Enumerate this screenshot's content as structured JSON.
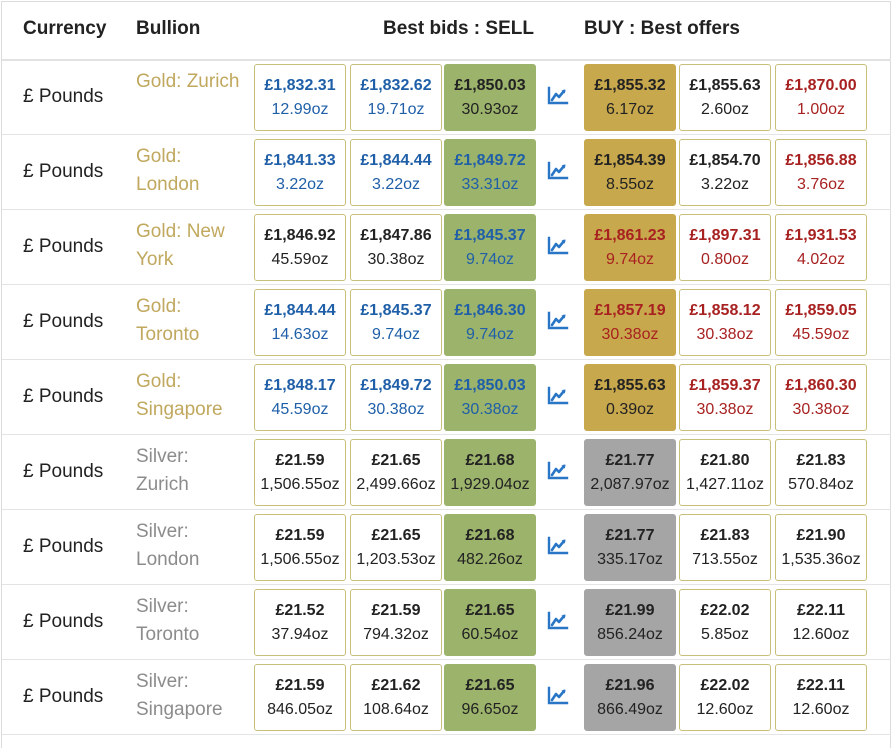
{
  "header": {
    "currency": "Currency",
    "bullion": "Bullion",
    "sell": "Best bids : SELL",
    "buy": "BUY : Best offers"
  },
  "colors": {
    "sell_highlight": "#9cb36c",
    "buy_gold_highlight": "#c8a84c",
    "buy_silver_highlight": "#a5a5a5",
    "blue_text": "#1f5fa8",
    "red_text": "#a82121",
    "gold_label": "#c0a85e",
    "silver_label": "#8c8c8c",
    "chart_icon": "#2a76c6"
  },
  "rows": [
    {
      "currency": "£ Pounds",
      "metal": "gold",
      "bullion": "Gold: Zurich",
      "sell": [
        {
          "price": "£1,832.31",
          "oz": "12.99oz",
          "color": "blue"
        },
        {
          "price": "£1,832.62",
          "oz": "19.71oz",
          "color": "blue"
        },
        {
          "price": "£1,850.03",
          "oz": "30.93oz",
          "color": "dark"
        }
      ],
      "buy": [
        {
          "price": "£1,855.32",
          "oz": "6.17oz",
          "color": "dark"
        },
        {
          "price": "£1,855.63",
          "oz": "2.60oz",
          "color": "dark"
        },
        {
          "price": "£1,870.00",
          "oz": "1.00oz",
          "color": "red"
        }
      ]
    },
    {
      "currency": "£ Pounds",
      "metal": "gold",
      "bullion": "Gold: London",
      "sell": [
        {
          "price": "£1,841.33",
          "oz": "3.22oz",
          "color": "blue"
        },
        {
          "price": "£1,844.44",
          "oz": "3.22oz",
          "color": "blue"
        },
        {
          "price": "£1,849.72",
          "oz": "33.31oz",
          "color": "blue"
        }
      ],
      "buy": [
        {
          "price": "£1,854.39",
          "oz": "8.55oz",
          "color": "dark"
        },
        {
          "price": "£1,854.70",
          "oz": "3.22oz",
          "color": "dark"
        },
        {
          "price": "£1,856.88",
          "oz": "3.76oz",
          "color": "red"
        }
      ]
    },
    {
      "currency": "£ Pounds",
      "metal": "gold",
      "bullion": "Gold: New York",
      "sell": [
        {
          "price": "£1,846.92",
          "oz": "45.59oz",
          "color": "dark"
        },
        {
          "price": "£1,847.86",
          "oz": "30.38oz",
          "color": "dark"
        },
        {
          "price": "£1,845.37",
          "oz": "9.74oz",
          "color": "blue"
        }
      ],
      "buy": [
        {
          "price": "£1,861.23",
          "oz": "9.74oz",
          "color": "red"
        },
        {
          "price": "£1,897.31",
          "oz": "0.80oz",
          "color": "red"
        },
        {
          "price": "£1,931.53",
          "oz": "4.02oz",
          "color": "red"
        }
      ]
    },
    {
      "currency": "£ Pounds",
      "metal": "gold",
      "bullion": "Gold: Toronto",
      "sell": [
        {
          "price": "£1,844.44",
          "oz": "14.63oz",
          "color": "blue"
        },
        {
          "price": "£1,845.37",
          "oz": "9.74oz",
          "color": "blue"
        },
        {
          "price": "£1,846.30",
          "oz": "9.74oz",
          "color": "blue"
        }
      ],
      "buy": [
        {
          "price": "£1,857.19",
          "oz": "30.38oz",
          "color": "red"
        },
        {
          "price": "£1,858.12",
          "oz": "30.38oz",
          "color": "red"
        },
        {
          "price": "£1,859.05",
          "oz": "45.59oz",
          "color": "red"
        }
      ]
    },
    {
      "currency": "£ Pounds",
      "metal": "gold",
      "bullion": "Gold: Singapore",
      "sell": [
        {
          "price": "£1,848.17",
          "oz": "45.59oz",
          "color": "blue"
        },
        {
          "price": "£1,849.72",
          "oz": "30.38oz",
          "color": "blue"
        },
        {
          "price": "£1,850.03",
          "oz": "30.38oz",
          "color": "blue"
        }
      ],
      "buy": [
        {
          "price": "£1,855.63",
          "oz": "0.39oz",
          "color": "dark"
        },
        {
          "price": "£1,859.37",
          "oz": "30.38oz",
          "color": "red"
        },
        {
          "price": "£1,860.30",
          "oz": "30.38oz",
          "color": "red"
        }
      ]
    },
    {
      "currency": "£ Pounds",
      "metal": "silver",
      "bullion": "Silver: Zurich",
      "sell": [
        {
          "price": "£21.59",
          "oz": "1,506.55oz",
          "color": "dark"
        },
        {
          "price": "£21.65",
          "oz": "2,499.66oz",
          "color": "dark"
        },
        {
          "price": "£21.68",
          "oz": "1,929.04oz",
          "color": "dark"
        }
      ],
      "buy": [
        {
          "price": "£21.77",
          "oz": "2,087.97oz",
          "color": "dark"
        },
        {
          "price": "£21.80",
          "oz": "1,427.11oz",
          "color": "dark"
        },
        {
          "price": "£21.83",
          "oz": "570.84oz",
          "color": "dark"
        }
      ]
    },
    {
      "currency": "£ Pounds",
      "metal": "silver",
      "bullion": "Silver: London",
      "sell": [
        {
          "price": "£21.59",
          "oz": "1,506.55oz",
          "color": "dark"
        },
        {
          "price": "£21.65",
          "oz": "1,203.53oz",
          "color": "dark"
        },
        {
          "price": "£21.68",
          "oz": "482.26oz",
          "color": "dark"
        }
      ],
      "buy": [
        {
          "price": "£21.77",
          "oz": "335.17oz",
          "color": "dark"
        },
        {
          "price": "£21.83",
          "oz": "713.55oz",
          "color": "dark"
        },
        {
          "price": "£21.90",
          "oz": "1,535.36oz",
          "color": "dark"
        }
      ]
    },
    {
      "currency": "£ Pounds",
      "metal": "silver",
      "bullion": "Silver: Toronto",
      "sell": [
        {
          "price": "£21.52",
          "oz": "37.94oz",
          "color": "dark"
        },
        {
          "price": "£21.59",
          "oz": "794.32oz",
          "color": "dark"
        },
        {
          "price": "£21.65",
          "oz": "60.54oz",
          "color": "dark"
        }
      ],
      "buy": [
        {
          "price": "£21.99",
          "oz": "856.24oz",
          "color": "dark"
        },
        {
          "price": "£22.02",
          "oz": "5.85oz",
          "color": "dark"
        },
        {
          "price": "£22.11",
          "oz": "12.60oz",
          "color": "dark"
        }
      ]
    },
    {
      "currency": "£ Pounds",
      "metal": "silver",
      "bullion": "Silver: Singapore",
      "sell": [
        {
          "price": "£21.59",
          "oz": "846.05oz",
          "color": "dark"
        },
        {
          "price": "£21.62",
          "oz": "108.64oz",
          "color": "dark"
        },
        {
          "price": "£21.65",
          "oz": "96.65oz",
          "color": "dark"
        }
      ],
      "buy": [
        {
          "price": "£21.96",
          "oz": "866.49oz",
          "color": "dark"
        },
        {
          "price": "£22.02",
          "oz": "12.60oz",
          "color": "dark"
        },
        {
          "price": "£22.11",
          "oz": "12.60oz",
          "color": "dark"
        }
      ]
    }
  ],
  "chart_icon": "line-chart-icon"
}
